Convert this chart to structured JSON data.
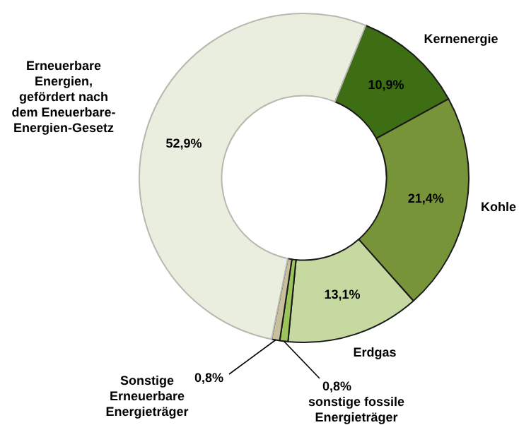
{
  "chart_data": {
    "type": "donut",
    "categories": [
      "Kernenergie",
      "Kohle",
      "Erdgas",
      "sonstige fossile Energieträger",
      "Sonstige Erneuerbare Energieträger",
      "Erneuerbare Energien, gefördert nach dem Eneuerbare-Energien-Gesetz"
    ],
    "values": [
      10.9,
      21.4,
      13.1,
      0.8,
      0.8,
      52.9
    ],
    "colors": [
      "#3d6e14",
      "#779438",
      "#c6d9a0",
      "#9bc45a",
      "#c8bf9c",
      "#eaeedf"
    ],
    "value_labels": [
      "10,9%",
      "21,4%",
      "13,1%",
      "0,8%",
      "0,8%",
      "52,9%"
    ]
  }
}
